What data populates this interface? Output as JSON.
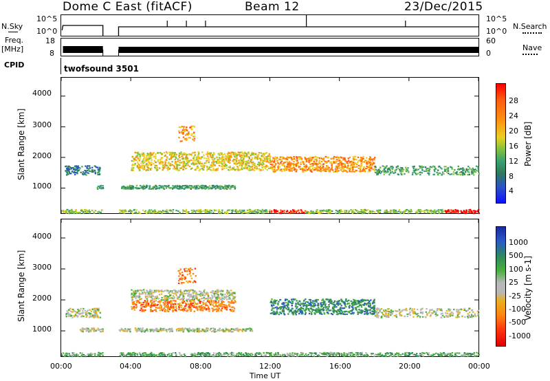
{
  "header": {
    "station": "Dome C East (fitACF)",
    "beam": "Beam 12",
    "date": "23/Dec/2015"
  },
  "strip_labels": {
    "nsky": "N.Sky",
    "nsearch": "N.Search",
    "freq": "Freq.",
    "mhz": "[MHz]",
    "nave": "Nave",
    "cpid": "CPID",
    "cpid_name": "twofsound 3501",
    "nsky_ticks": [
      "10^5",
      "10^0"
    ],
    "nsearch_ticks": [
      "10^5",
      "10^0"
    ],
    "freq_ticks": [
      "18",
      "8"
    ],
    "nave_ticks": [
      "60",
      "0"
    ]
  },
  "chart_data": [
    {
      "type": "heatmap",
      "panel": "power",
      "ylabel": "Slant Range [km]",
      "colorbar_label": "Power [dB]",
      "colorbar_ticks": [
        "28",
        "24",
        "20",
        "16",
        "12",
        "8",
        "4"
      ],
      "ylim": [
        180,
        4600
      ],
      "yticks": [
        "4000",
        "3000",
        "2000",
        "1000"
      ],
      "xticks": [
        "00:00",
        "04:00",
        "08:00",
        "12:00",
        "16:00",
        "20:00",
        "00:00"
      ],
      "colors": [
        "#1010ff",
        "#2a52c8",
        "#2e7a5a",
        "#3aa070",
        "#80c040",
        "#e8d020",
        "#ff9010",
        "#ff5a10",
        "#ff0000"
      ],
      "data_gap_hours": [
        2.4,
        3.3
      ]
    },
    {
      "type": "heatmap",
      "panel": "velocity",
      "ylabel": "Slant Range [km]",
      "colorbar_label": "Velocity [m s-1]",
      "colorbar_ticks": [
        "1000",
        "500",
        "100",
        "25",
        "-25",
        "-100",
        "-500",
        "-1000"
      ],
      "ylim": [
        180,
        4600
      ],
      "yticks": [
        "4000",
        "3000",
        "2000",
        "1000"
      ],
      "xticks": [
        "00:00",
        "04:00",
        "08:00",
        "12:00",
        "16:00",
        "20:00",
        "00:00"
      ],
      "colors": [
        "#1a2aa0",
        "#2a5ac8",
        "#2e8a5a",
        "#4cb040",
        "#b8b8b8",
        "#e8b020",
        "#ff8010",
        "#ff3010",
        "#e00000"
      ],
      "xlabel": "Time UT",
      "data_gap_hours": [
        2.4,
        3.3
      ]
    }
  ]
}
